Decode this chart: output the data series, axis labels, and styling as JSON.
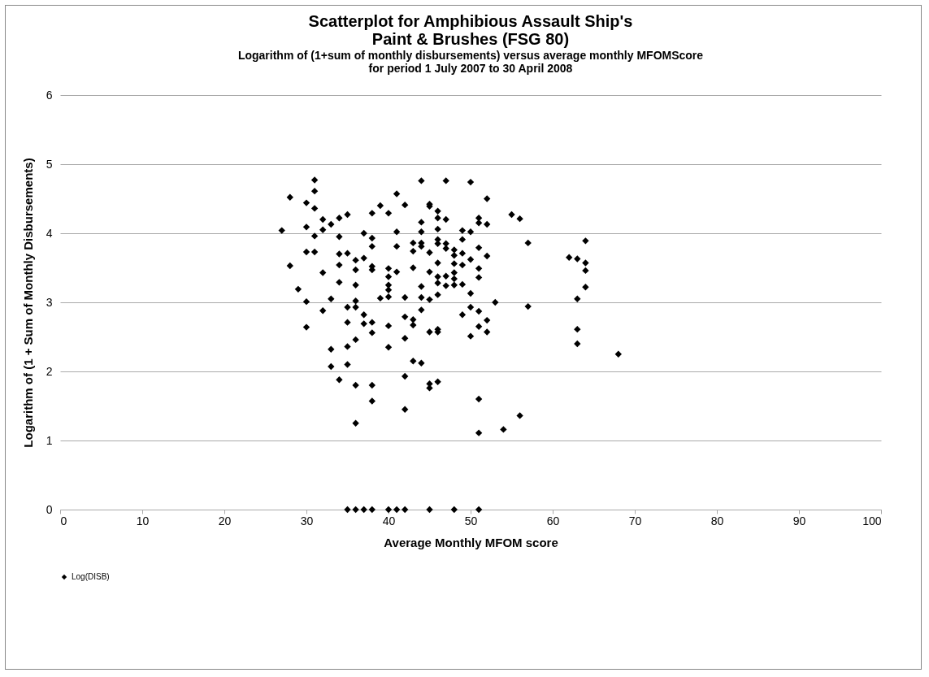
{
  "chart_data": {
    "type": "scatter",
    "title": [
      "Scatterplot for Amphibious Assault Ship's",
      "Paint & Brushes (FSG 80)"
    ],
    "subtitle": [
      "Logarithm of (1+sum of monthly disbursements) versus average monthly MFOMScore",
      "for period 1 July 2007 to 30 April 2008"
    ],
    "xlabel": "Average Monthly MFOM score",
    "ylabel": "Logarithm of (1 + Sum of Monthly Disbursements)",
    "xlim": [
      0,
      100
    ],
    "xticks": [
      0,
      10,
      20,
      30,
      40,
      50,
      60,
      70,
      80,
      90,
      100
    ],
    "ylim": [
      0,
      6
    ],
    "yticks": [
      0,
      1,
      2,
      3,
      4,
      5,
      6
    ],
    "grid": "y",
    "legend": "bottom",
    "marker": "diamond",
    "series": [
      {
        "name": "Log(DISB)",
        "color": "#000000",
        "x": [
          27,
          28,
          28,
          29,
          30,
          30,
          30,
          30,
          30,
          31,
          31,
          31,
          31,
          31,
          32,
          32,
          32,
          32,
          33,
          33,
          33,
          33,
          34,
          34,
          34,
          34,
          34,
          34,
          35,
          35,
          35,
          35,
          35,
          35,
          35,
          36,
          36,
          36,
          36,
          36,
          36,
          36,
          36,
          36,
          37,
          37,
          37,
          37,
          37,
          38,
          38,
          38,
          38,
          38,
          38,
          38,
          38,
          38,
          38,
          39,
          39,
          40,
          40,
          40,
          40,
          40,
          40,
          40,
          40,
          40,
          41,
          41,
          41,
          41,
          41,
          42,
          42,
          42,
          42,
          42,
          42,
          42,
          43,
          43,
          43,
          43,
          43,
          43,
          44,
          44,
          44,
          44,
          44,
          44,
          44,
          44,
          44,
          45,
          45,
          45,
          45,
          45,
          45,
          45,
          45,
          45,
          46,
          46,
          46,
          46,
          46,
          46,
          46,
          46,
          46,
          46,
          46,
          46,
          47,
          47,
          47,
          47,
          47,
          47,
          48,
          48,
          48,
          48,
          48,
          48,
          48,
          49,
          49,
          49,
          49,
          49,
          49,
          50,
          50,
          50,
          50,
          50,
          50,
          51,
          51,
          51,
          51,
          51,
          51,
          51,
          51,
          51,
          51,
          52,
          52,
          52,
          52,
          52,
          53,
          54,
          55,
          56,
          56,
          57,
          57,
          62,
          63,
          63,
          63,
          63,
          64,
          64,
          64,
          64,
          68
        ],
        "values": [
          4.04,
          4.52,
          3.53,
          3.19,
          4.44,
          4.09,
          3.73,
          3.01,
          2.64,
          4.77,
          4.61,
          4.36,
          3.96,
          3.73,
          4.2,
          4.05,
          3.43,
          2.88,
          4.13,
          3.05,
          2.32,
          2.07,
          4.22,
          3.95,
          3.7,
          3.54,
          3.29,
          1.88,
          4.27,
          3.71,
          2.93,
          2.71,
          2.36,
          2.1,
          0,
          3.61,
          3.47,
          3.25,
          3.02,
          2.93,
          2.46,
          1.8,
          1.25,
          0,
          4.0,
          3.64,
          2.82,
          2.69,
          0,
          4.29,
          3.93,
          3.81,
          3.52,
          3.47,
          2.71,
          2.56,
          1.8,
          1.57,
          0,
          4.4,
          3.06,
          4.29,
          3.49,
          3.37,
          3.25,
          3.18,
          3.08,
          2.66,
          2.35,
          0,
          4.57,
          4.02,
          3.81,
          3.44,
          0,
          4.41,
          3.07,
          2.79,
          2.48,
          1.93,
          1.45,
          0,
          3.86,
          3.74,
          3.5,
          2.75,
          2.67,
          2.15,
          4.76,
          4.16,
          4.02,
          3.86,
          3.81,
          3.23,
          3.07,
          2.89,
          2.12,
          4.42,
          4.39,
          3.72,
          3.44,
          3.04,
          2.57,
          1.82,
          1.76,
          0,
          4.32,
          4.22,
          4.06,
          3.91,
          3.85,
          3.57,
          3.37,
          3.28,
          3.11,
          2.61,
          2.57,
          1.85,
          4.76,
          4.2,
          3.85,
          3.78,
          3.38,
          3.24,
          3.76,
          3.68,
          3.56,
          3.43,
          3.34,
          3.25,
          0,
          4.04,
          3.91,
          3.71,
          3.54,
          3.26,
          2.82,
          4.74,
          4.02,
          3.62,
          3.13,
          2.93,
          2.51,
          4.22,
          4.15,
          3.79,
          3.49,
          3.36,
          2.87,
          2.65,
          1.6,
          1.11,
          0,
          4.5,
          4.13,
          3.67,
          2.74,
          2.57,
          3.0,
          1.16,
          4.27,
          4.21,
          1.36,
          3.86,
          2.94,
          3.65,
          3.63,
          3.05,
          2.61,
          2.4,
          3.89,
          3.57,
          3.46,
          3.22,
          2.25
        ]
      }
    ]
  }
}
